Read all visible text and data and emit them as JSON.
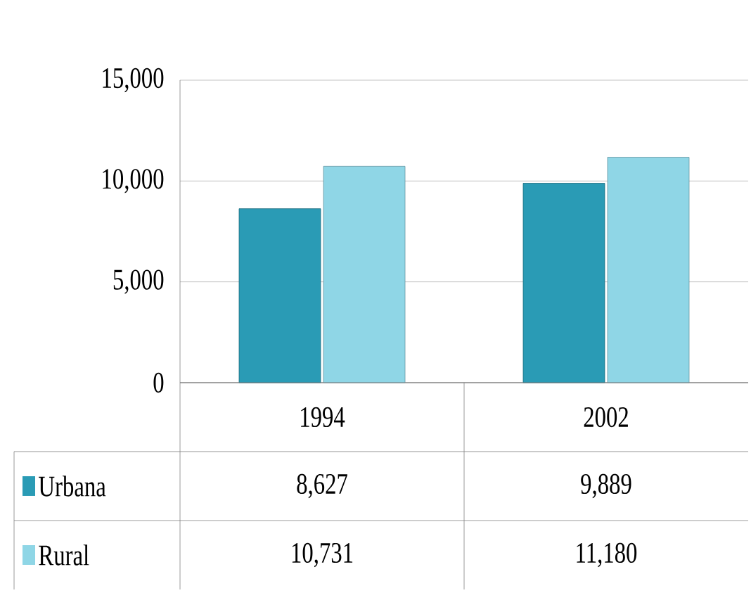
{
  "chart_data": {
    "type": "bar",
    "categories": [
      "1994",
      "2002"
    ],
    "series": [
      {
        "name": "Urbana",
        "color": "#2a9bb5",
        "values": [
          8627,
          9889
        ],
        "value_labels": [
          "8,627",
          "9,889"
        ]
      },
      {
        "name": "Rural",
        "color": "#8fd6e6",
        "values": [
          10731,
          11180
        ],
        "value_labels": [
          "10,731",
          "11,180"
        ]
      }
    ],
    "ylim": [
      0,
      15000
    ],
    "yticks": [
      {
        "value": 0,
        "label": "0"
      },
      {
        "value": 5000,
        "label": "5,000"
      },
      {
        "value": 10000,
        "label": "10,000"
      },
      {
        "value": 15000,
        "label": "15,000"
      }
    ],
    "grid": "y",
    "legend": "bottom"
  }
}
